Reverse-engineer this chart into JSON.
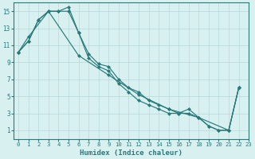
{
  "xlabel": "Humidex (Indice chaleur)",
  "bg_color": "#d8f0f0",
  "grid_color": "#b8d8d8",
  "line_color": "#2a7a7a",
  "xlim": [
    -0.5,
    23
  ],
  "ylim": [
    0,
    16
  ],
  "xticks": [
    0,
    1,
    2,
    3,
    4,
    5,
    6,
    7,
    8,
    9,
    10,
    11,
    12,
    13,
    14,
    15,
    16,
    17,
    18,
    19,
    20,
    21,
    22,
    23
  ],
  "yticks": [
    1,
    3,
    5,
    7,
    9,
    11,
    13,
    15
  ],
  "line1_x": [
    0,
    1,
    2,
    3,
    4,
    5,
    6,
    7,
    8,
    9,
    10,
    11,
    12,
    13,
    14,
    15,
    16,
    17,
    18,
    19,
    20,
    21,
    22
  ],
  "line1_y": [
    10.2,
    11.5,
    14.0,
    15.0,
    15.0,
    15.5,
    12.5,
    10.0,
    8.8,
    8.5,
    7.0,
    6.0,
    5.5,
    4.5,
    4.0,
    3.5,
    3.0,
    3.0,
    2.5,
    1.5,
    1.0,
    1.0,
    6.0
  ],
  "line2_x": [
    0,
    1,
    2,
    3,
    4,
    5,
    6,
    7,
    8,
    9,
    10,
    11,
    12,
    13,
    14,
    15,
    16,
    17,
    18,
    19,
    20,
    21,
    22
  ],
  "line2_y": [
    10.2,
    11.5,
    14.0,
    15.0,
    15.0,
    15.0,
    12.5,
    9.5,
    8.5,
    8.0,
    6.5,
    5.5,
    4.5,
    4.0,
    3.5,
    3.0,
    3.0,
    3.5,
    2.5,
    1.5,
    1.0,
    1.0,
    6.0
  ],
  "line3_x": [
    0,
    1,
    3,
    6,
    9,
    12,
    15,
    18,
    21,
    22
  ],
  "line3_y": [
    10.2,
    12.0,
    15.0,
    9.8,
    7.5,
    5.2,
    3.5,
    2.5,
    1.0,
    6.0
  ]
}
